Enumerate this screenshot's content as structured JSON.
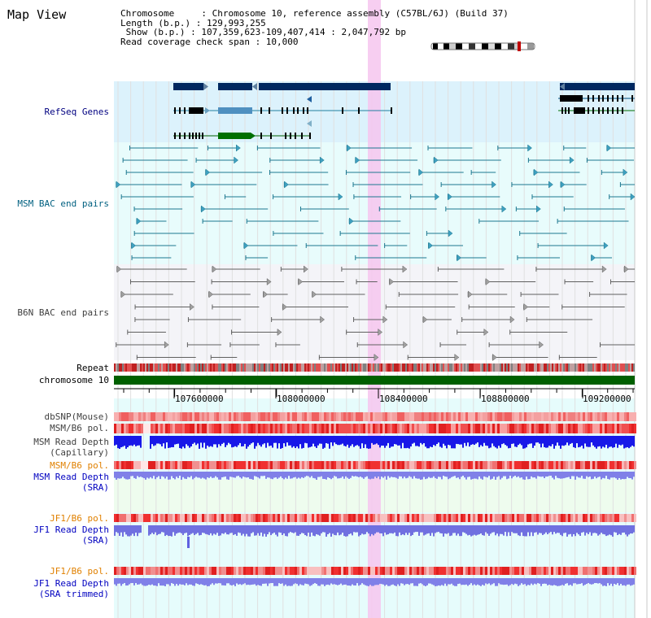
{
  "title": "Map View",
  "info": {
    "chromosome": "Chromosome     : Chromosome 10, reference assembly (C57BL/6J) (Build 37)",
    "length": "Length (b.p.) : 129,993,255",
    "show": " Show (b.p.) : 107,359,623-109,407,414 : 2,047,792 bp",
    "coverage": "Read coverage check span : 10,000"
  },
  "tracks": {
    "refseq": "RefSeq Genes",
    "msm_bac": "MSM BAC end pairs",
    "b6n_bac": "B6N BAC end pairs",
    "repeat": "Repeat",
    "chromosome": "chromosome 10",
    "dbsnp": "dbSNP(Mouse)",
    "msm_b6_pol_1": "MSM/B6 pol.",
    "msm_depth_cap_1": "MSM Read Depth",
    "msm_depth_cap_2": "(Capillary)",
    "msm_b6_pol_2": "MSM/B6 pol.",
    "msm_depth_sra_1": "MSM Read Depth",
    "msm_depth_sra_2": "(SRA)",
    "jf1_pol_1": "JF1/B6 pol.",
    "jf1_depth_sra_1": "JF1 Read Depth",
    "jf1_depth_sra_2": "(SRA)",
    "jf1_pol_2": "JF1/B6 pol.",
    "jf1_depth_trim_1": "JF1 Read Depth",
    "jf1_depth_trim_2": "(SRA trimmed)"
  },
  "axis_ticks": [
    "107600000",
    "108000000",
    "108400000",
    "108800000",
    "109200000"
  ],
  "colors": {
    "refseq_bg": "#dcf2fc",
    "bac_bg": "#e8fcfc",
    "gray_bg": "#f4f4f8",
    "highlight": "#f6c6ee",
    "chromosome_bar": "#006000",
    "label_navy": "#000080",
    "label_teal": "#006080",
    "label_gray": "#404040",
    "label_orange": "#e08000",
    "label_blue": "#0000c0"
  }
}
